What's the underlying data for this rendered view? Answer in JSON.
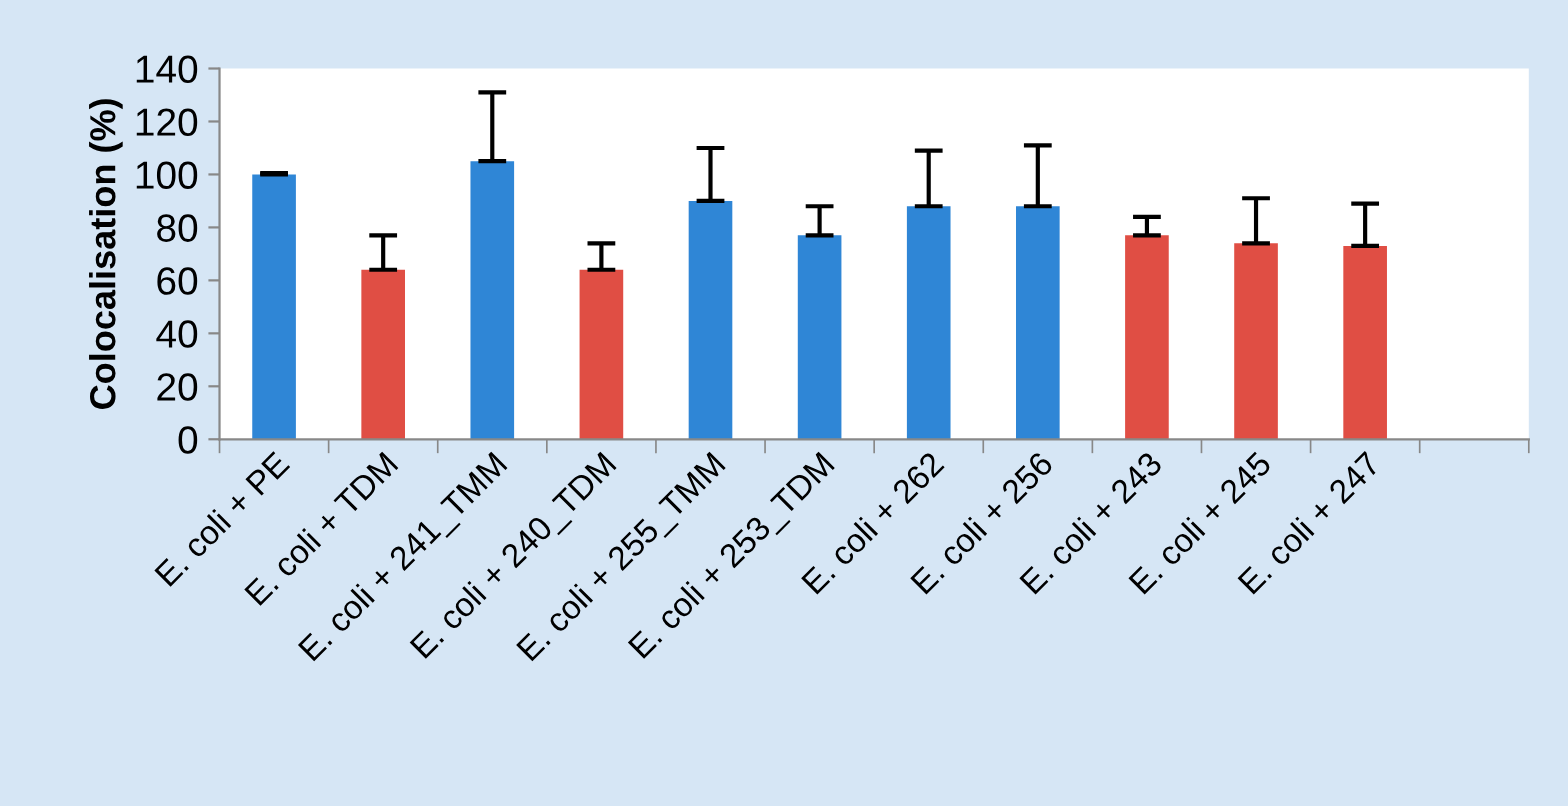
{
  "chart_data": {
    "type": "bar",
    "ylabel": "Colocalisation (%)",
    "categories": [
      "E. coli + PE",
      "E. coli + TDM",
      "E. coli + 241_TMM",
      "E. coli + 240_TDM",
      "E. coli + 255_TMM",
      "E. coli + 253_TDM",
      "E. coli + 262",
      "E. coli + 256",
      "E. coli + 243",
      "E. coli + 245",
      "E. coli + 247",
      null
    ],
    "values": [
      100,
      64,
      105,
      64,
      90,
      77,
      88,
      88,
      77,
      74,
      73,
      null
    ],
    "colors": [
      "#2f86d6",
      "#e04e44",
      "#2f86d6",
      "#e04e44",
      "#2f86d6",
      "#2f86d6",
      "#2f86d6",
      "#2f86d6",
      "#e04e44",
      "#e04e44",
      "#e04e44",
      "#e04e44"
    ],
    "errors": [
      [
        100,
        100.5
      ],
      [
        64,
        77
      ],
      [
        105,
        131
      ],
      [
        64,
        74
      ],
      [
        90,
        110
      ],
      [
        77,
        88
      ],
      [
        88,
        109
      ],
      [
        88,
        111
      ],
      [
        77,
        84
      ],
      [
        74,
        91
      ],
      [
        73,
        89
      ],
      null
    ],
    "ylim": [
      0,
      140
    ],
    "yticks": [
      0,
      20,
      40,
      60,
      80,
      100,
      120,
      140
    ],
    "grid": false,
    "legend": false
  }
}
